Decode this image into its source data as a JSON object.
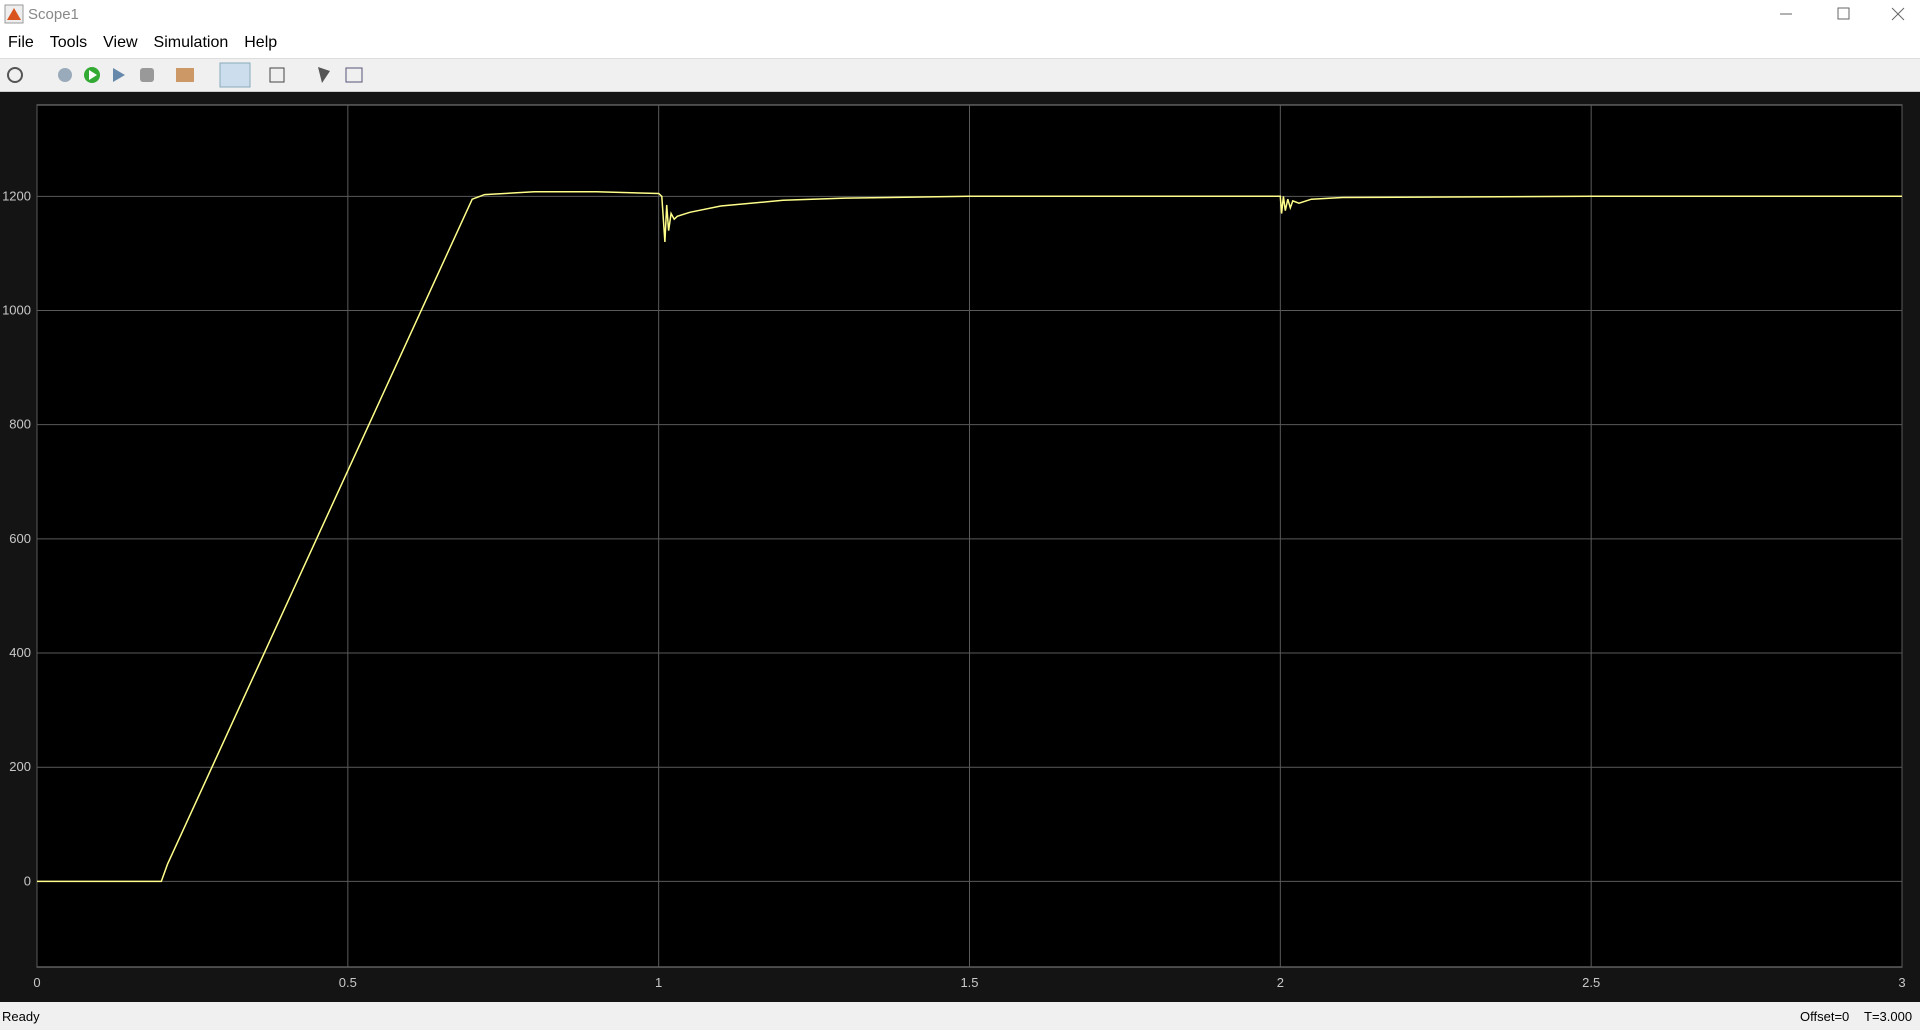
{
  "window": {
    "title": "Scope1"
  },
  "menu": [
    "File",
    "Tools",
    "View",
    "Simulation",
    "Help"
  ],
  "status": {
    "left": "Ready",
    "offset": "Offset=0",
    "time": "T=3.000"
  },
  "chart_data": {
    "type": "line",
    "color": "#ffff8a",
    "x": [
      0,
      0.2,
      0.21,
      0.7,
      0.72,
      0.8,
      0.9,
      1.0,
      1.005,
      1.01,
      1.013,
      1.016,
      1.02,
      1.025,
      1.03,
      1.05,
      1.1,
      1.2,
      1.3,
      1.5,
      2.0,
      2.002,
      2.005,
      2.008,
      2.012,
      2.016,
      2.02,
      2.03,
      2.05,
      2.1,
      2.5,
      3.0
    ],
    "values": [
      0,
      0,
      30,
      1195,
      1203,
      1208,
      1208,
      1205,
      1200,
      1120,
      1185,
      1140,
      1170,
      1160,
      1165,
      1172,
      1183,
      1193,
      1197,
      1200,
      1200,
      1170,
      1200,
      1175,
      1195,
      1180,
      1192,
      1188,
      1195,
      1198,
      1200,
      1200
    ],
    "xlim": [
      0,
      3
    ],
    "xticks": [
      0,
      0.5,
      1,
      1.5,
      2,
      2.5,
      3
    ],
    "ylim": [
      -150,
      1360
    ],
    "yticks": [
      0,
      200,
      400,
      600,
      800,
      1000,
      1200
    ],
    "grid": true
  }
}
